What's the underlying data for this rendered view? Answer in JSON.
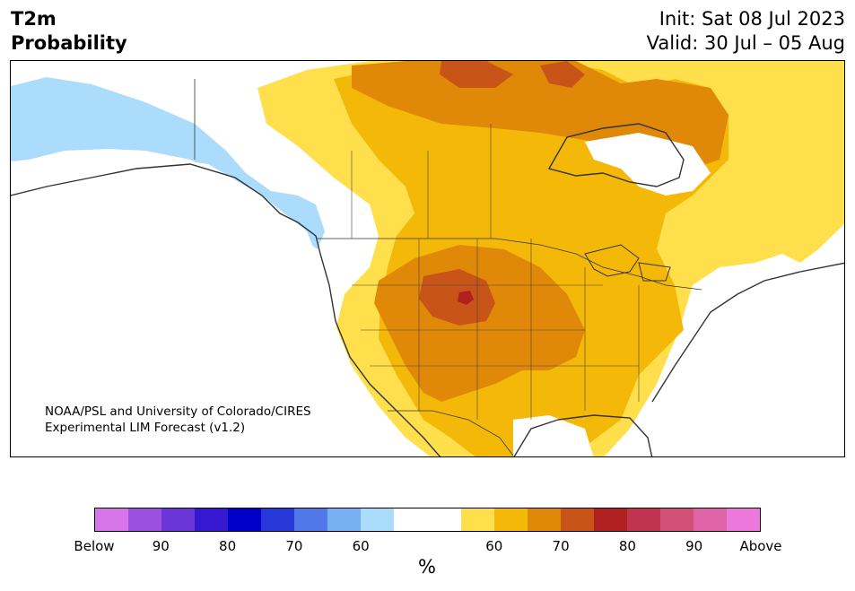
{
  "title": {
    "variable": "T2m",
    "field": "Probability",
    "init": "Init: Sat 08 Jul 2023",
    "valid": "Valid: 30 Jul – 05 Aug"
  },
  "credit": {
    "line1": "NOAA/PSL and University of Colorado/CIRES",
    "line2": "Experimental LIM Forecast (v1.2)"
  },
  "colorbar": {
    "colors": [
      "#d676e8",
      "#9b50e0",
      "#6a36d8",
      "#3518d0",
      "#0000c8",
      "#2838d8",
      "#5078e8",
      "#78b0f4",
      "#acdcfc",
      "#ffffff",
      "#ffffff",
      "#ffe04c",
      "#f4b808",
      "#e08808",
      "#c85418",
      "#b02020",
      "#c03450",
      "#d05078",
      "#e064a8",
      "#ec78dc"
    ],
    "tick_labels": [
      "Below",
      "90",
      "80",
      "70",
      "60",
      "60",
      "70",
      "80",
      "90",
      "Above"
    ],
    "unit": "%"
  },
  "map": {
    "region": "North America",
    "category_colors": {
      "below_60": "#acdcfc",
      "neutral": "#ffffff",
      "above_60": "#ffe04c",
      "above_65": "#f4b808",
      "above_70": "#e08808",
      "above_75": "#c85418",
      "above_80": "#b02020"
    }
  }
}
